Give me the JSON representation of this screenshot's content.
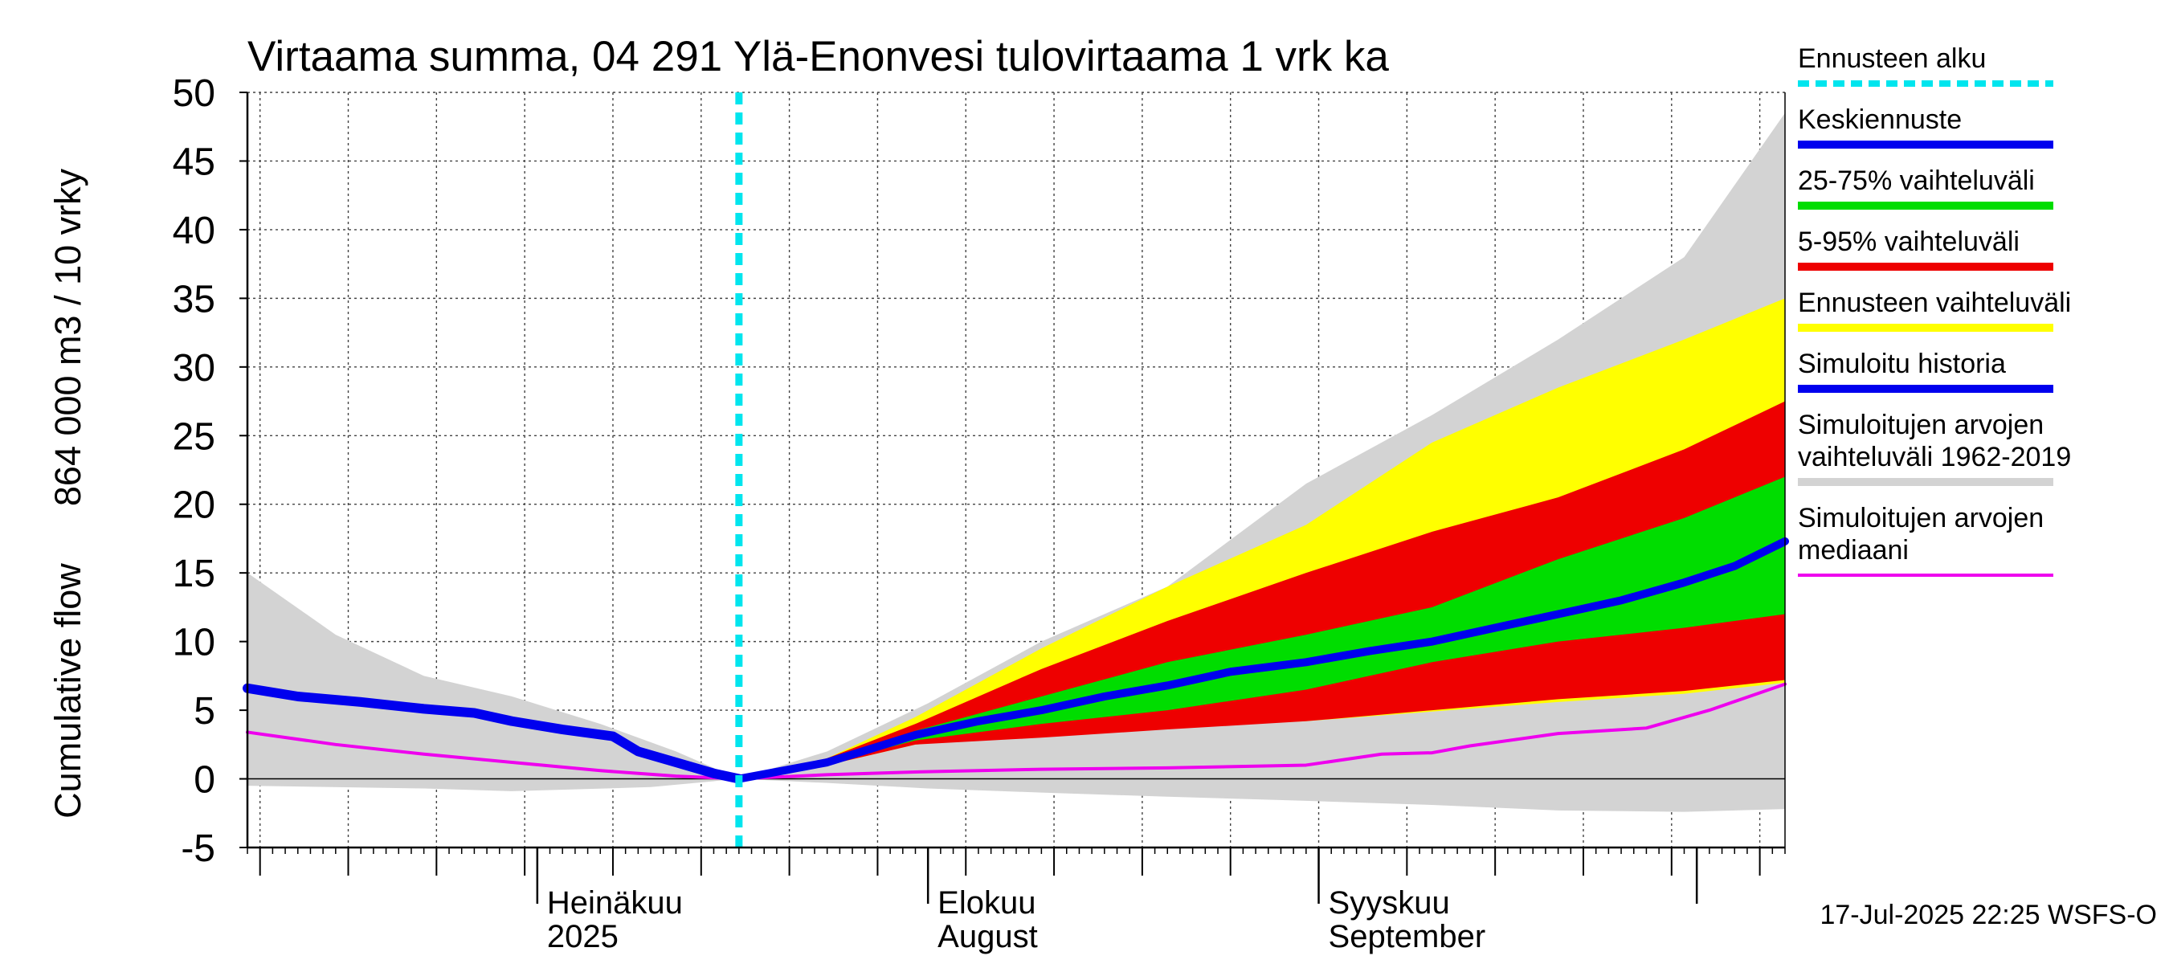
{
  "chart_data": {
    "type": "area",
    "title": "Virtaama summa, 04 291 Ylä-Enonvesi tulovirtaama 1 vrk ka",
    "ylabel_line1": "864 000 m3 / 10 vrky",
    "ylabel_line2": "Cumulative flow",
    "ylim": [
      -5,
      50
    ],
    "yticks": [
      -5,
      0,
      5,
      10,
      15,
      20,
      25,
      30,
      35,
      40,
      45,
      50
    ],
    "x_axis_type": "date",
    "xlim": [
      "2025-06-08",
      "2025-10-08"
    ],
    "month_labels": [
      {
        "date": "2025-07-01",
        "line1": "Heinäkuu",
        "line2": "2025"
      },
      {
        "date": "2025-08-01",
        "line1": "Elokuu",
        "line2": "August"
      },
      {
        "date": "2025-09-01",
        "line1": "Syyskuu",
        "line2": "September"
      }
    ],
    "grid": true,
    "forecast_start": "2025-07-17",
    "colors": {
      "forecast_start": "#00e5ee",
      "mean_forecast": "#0000ee",
      "band_25_75": "#00dd00",
      "band_5_95": "#ee0000",
      "band_forecast_range": "#ffff00",
      "sim_history": "#0000ee",
      "sim_range": "#d3d3d3",
      "sim_median": "#ee00ee"
    },
    "legend_position": "right",
    "legend": [
      {
        "key": "forecast_start",
        "lines": [
          "Ennusteen alku"
        ],
        "style": "dashed"
      },
      {
        "key": "mean_forecast",
        "lines": [
          "Keskiennuste"
        ],
        "style": "solid"
      },
      {
        "key": "band_25_75",
        "lines": [
          "25-75% vaihteluväli"
        ],
        "style": "solid"
      },
      {
        "key": "band_5_95",
        "lines": [
          "5-95% vaihteluväli"
        ],
        "style": "solid"
      },
      {
        "key": "band_forecast_range",
        "lines": [
          "Ennusteen vaihteluväli"
        ],
        "style": "solid"
      },
      {
        "key": "sim_history",
        "lines": [
          "Simuloitu historia"
        ],
        "style": "solid"
      },
      {
        "key": "sim_range",
        "lines": [
          "Simuloitujen arvojen",
          "vaihteluväli 1962-2019"
        ],
        "style": "solid"
      },
      {
        "key": "sim_median",
        "lines": [
          "Simuloitujen arvojen",
          "mediaani"
        ],
        "style": "thin"
      }
    ],
    "series": {
      "sim_range": {
        "upper": [
          [
            "2025-06-08",
            15.0
          ],
          [
            "2025-06-15",
            10.5
          ],
          [
            "2025-06-22",
            7.5
          ],
          [
            "2025-06-29",
            6.0
          ],
          [
            "2025-07-06",
            4.0
          ],
          [
            "2025-07-12",
            2.0
          ],
          [
            "2025-07-17",
            0.0
          ],
          [
            "2025-07-24",
            2.0
          ],
          [
            "2025-08-01",
            5.5
          ],
          [
            "2025-08-10",
            10.0
          ],
          [
            "2025-08-20",
            14.0
          ],
          [
            "2025-08-31",
            21.5
          ],
          [
            "2025-09-10",
            26.5
          ],
          [
            "2025-09-20",
            32.0
          ],
          [
            "2025-09-30",
            38.0
          ],
          [
            "2025-10-08",
            48.5
          ]
        ],
        "lower": [
          [
            "2025-06-08",
            -0.5
          ],
          [
            "2025-06-22",
            -0.7
          ],
          [
            "2025-06-29",
            -0.9
          ],
          [
            "2025-07-10",
            -0.6
          ],
          [
            "2025-07-17",
            0.0
          ],
          [
            "2025-07-24",
            -0.3
          ],
          [
            "2025-08-01",
            -0.7
          ],
          [
            "2025-08-10",
            -1.0
          ],
          [
            "2025-08-20",
            -1.3
          ],
          [
            "2025-08-31",
            -1.6
          ],
          [
            "2025-09-10",
            -1.9
          ],
          [
            "2025-09-20",
            -2.3
          ],
          [
            "2025-09-30",
            -2.4
          ],
          [
            "2025-10-08",
            -2.2
          ]
        ]
      },
      "band_forecast_range": {
        "upper": [
          [
            "2025-07-17",
            0.0
          ],
          [
            "2025-07-24",
            1.5
          ],
          [
            "2025-07-31",
            4.5
          ],
          [
            "2025-08-10",
            9.5
          ],
          [
            "2025-08-20",
            14.0
          ],
          [
            "2025-08-31",
            18.5
          ],
          [
            "2025-09-10",
            24.5
          ],
          [
            "2025-09-20",
            28.5
          ],
          [
            "2025-09-30",
            32.0
          ],
          [
            "2025-10-08",
            35.0
          ]
        ],
        "lower": [
          [
            "2025-07-17",
            0.0
          ],
          [
            "2025-07-24",
            1.0
          ],
          [
            "2025-07-31",
            2.5
          ],
          [
            "2025-08-10",
            3.2
          ],
          [
            "2025-08-20",
            3.7
          ],
          [
            "2025-08-31",
            4.2
          ],
          [
            "2025-09-10",
            4.9
          ],
          [
            "2025-09-20",
            5.6
          ],
          [
            "2025-09-30",
            6.2
          ],
          [
            "2025-10-08",
            7.0
          ]
        ]
      },
      "band_5_95": {
        "upper": [
          [
            "2025-07-17",
            0.0
          ],
          [
            "2025-07-24",
            1.5
          ],
          [
            "2025-07-31",
            4.0
          ],
          [
            "2025-08-10",
            8.0
          ],
          [
            "2025-08-20",
            11.5
          ],
          [
            "2025-08-31",
            15.0
          ],
          [
            "2025-09-10",
            18.0
          ],
          [
            "2025-09-20",
            20.5
          ],
          [
            "2025-09-30",
            24.0
          ],
          [
            "2025-10-08",
            27.5
          ]
        ],
        "lower": [
          [
            "2025-07-17",
            0.0
          ],
          [
            "2025-07-24",
            1.0
          ],
          [
            "2025-07-31",
            2.5
          ],
          [
            "2025-08-10",
            3.0
          ],
          [
            "2025-08-20",
            3.6
          ],
          [
            "2025-08-31",
            4.2
          ],
          [
            "2025-09-10",
            5.0
          ],
          [
            "2025-09-20",
            5.8
          ],
          [
            "2025-09-30",
            6.4
          ],
          [
            "2025-10-08",
            7.2
          ]
        ]
      },
      "band_25_75": {
        "upper": [
          [
            "2025-07-17",
            0.0
          ],
          [
            "2025-07-24",
            1.3
          ],
          [
            "2025-07-31",
            3.5
          ],
          [
            "2025-08-10",
            6.0
          ],
          [
            "2025-08-20",
            8.5
          ],
          [
            "2025-08-31",
            10.5
          ],
          [
            "2025-09-10",
            12.5
          ],
          [
            "2025-09-20",
            16.0
          ],
          [
            "2025-09-30",
            19.0
          ],
          [
            "2025-10-08",
            22.0
          ]
        ],
        "lower": [
          [
            "2025-07-17",
            0.0
          ],
          [
            "2025-07-24",
            1.1
          ],
          [
            "2025-07-31",
            2.8
          ],
          [
            "2025-08-10",
            4.0
          ],
          [
            "2025-08-20",
            5.0
          ],
          [
            "2025-08-31",
            6.5
          ],
          [
            "2025-09-10",
            8.5
          ],
          [
            "2025-09-20",
            10.0
          ],
          [
            "2025-09-30",
            11.0
          ],
          [
            "2025-10-08",
            12.0
          ]
        ]
      },
      "mean_forecast": [
        [
          "2025-07-17",
          0.0
        ],
        [
          "2025-07-24",
          1.2
        ],
        [
          "2025-07-31",
          3.2
        ],
        [
          "2025-08-05",
          4.2
        ],
        [
          "2025-08-10",
          5.0
        ],
        [
          "2025-08-15",
          6.0
        ],
        [
          "2025-08-20",
          6.8
        ],
        [
          "2025-08-25",
          7.8
        ],
        [
          "2025-08-31",
          8.5
        ],
        [
          "2025-09-05",
          9.3
        ],
        [
          "2025-09-10",
          10.0
        ],
        [
          "2025-09-15",
          11.0
        ],
        [
          "2025-09-20",
          12.0
        ],
        [
          "2025-09-25",
          13.0
        ],
        [
          "2025-09-30",
          14.3
        ],
        [
          "2025-10-04",
          15.5
        ],
        [
          "2025-10-08",
          17.3
        ]
      ],
      "sim_history": [
        [
          "2025-06-08",
          6.6
        ],
        [
          "2025-06-12",
          6.0
        ],
        [
          "2025-06-17",
          5.6
        ],
        [
          "2025-06-22",
          5.1
        ],
        [
          "2025-06-26",
          4.8
        ],
        [
          "2025-06-29",
          4.2
        ],
        [
          "2025-07-03",
          3.6
        ],
        [
          "2025-07-07",
          3.1
        ],
        [
          "2025-07-09",
          2.0
        ],
        [
          "2025-07-12",
          1.2
        ],
        [
          "2025-07-15",
          0.4
        ],
        [
          "2025-07-17",
          0.0
        ]
      ],
      "sim_median": [
        [
          "2025-06-08",
          3.4
        ],
        [
          "2025-06-15",
          2.5
        ],
        [
          "2025-06-22",
          1.8
        ],
        [
          "2025-06-29",
          1.2
        ],
        [
          "2025-07-06",
          0.6
        ],
        [
          "2025-07-12",
          0.2
        ],
        [
          "2025-07-17",
          0.0
        ],
        [
          "2025-07-24",
          0.3
        ],
        [
          "2025-07-31",
          0.5
        ],
        [
          "2025-08-10",
          0.7
        ],
        [
          "2025-08-20",
          0.8
        ],
        [
          "2025-08-31",
          1.0
        ],
        [
          "2025-09-06",
          1.8
        ],
        [
          "2025-09-10",
          1.9
        ],
        [
          "2025-09-13",
          2.4
        ],
        [
          "2025-09-20",
          3.3
        ],
        [
          "2025-09-27",
          3.7
        ],
        [
          "2025-10-02",
          5.0
        ],
        [
          "2025-10-08",
          6.9
        ]
      ]
    }
  },
  "footer": {
    "timestamp": "17-Jul-2025 22:25 WSFS-O"
  }
}
